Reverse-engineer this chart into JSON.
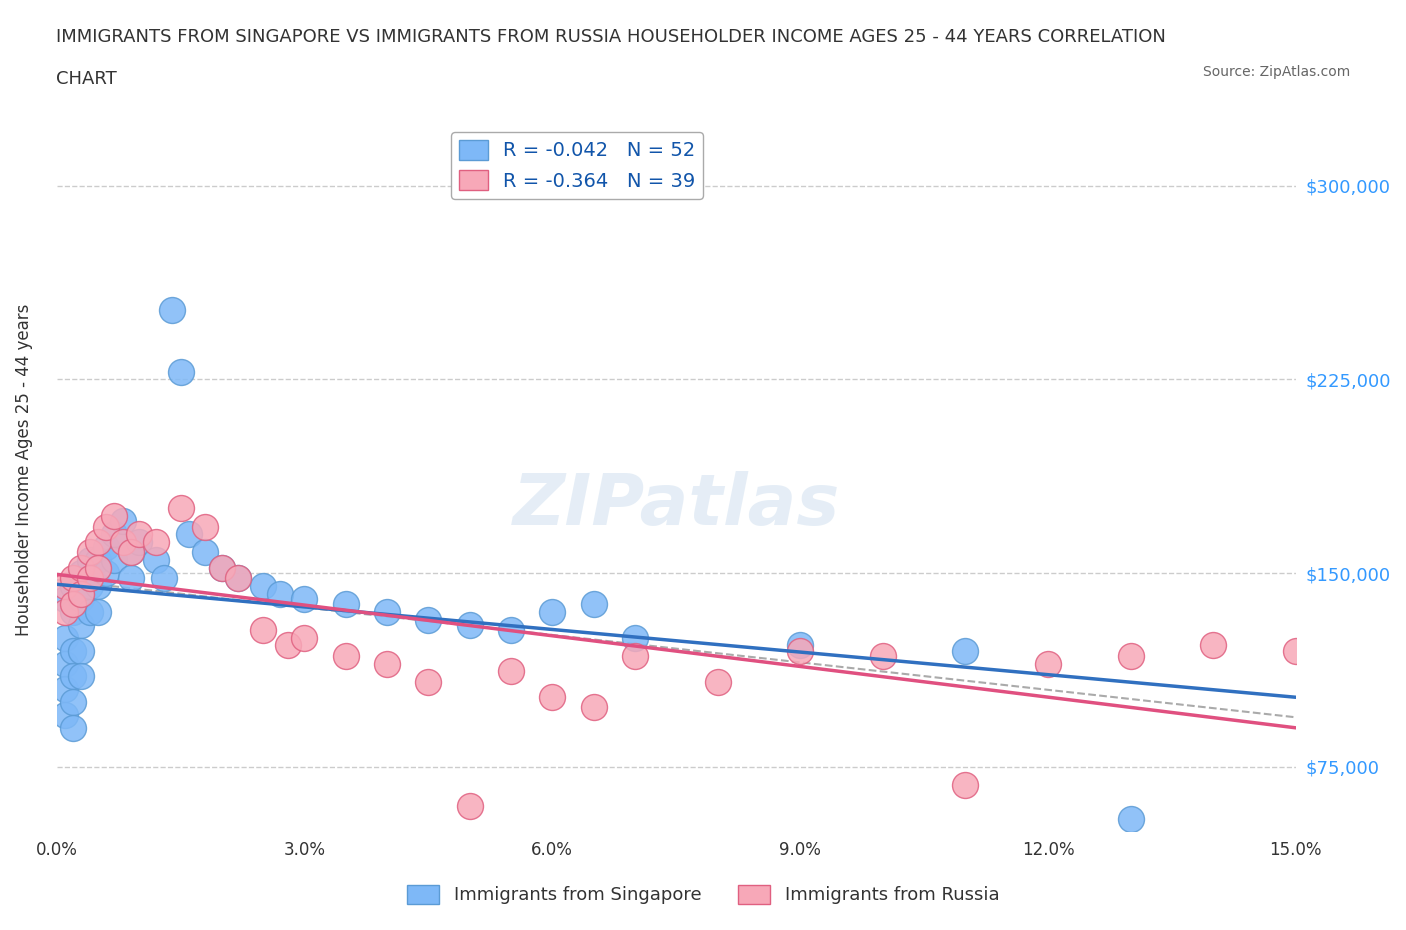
{
  "title_line1": "IMMIGRANTS FROM SINGAPORE VS IMMIGRANTS FROM RUSSIA HOUSEHOLDER INCOME AGES 25 - 44 YEARS CORRELATION",
  "title_line2": "CHART",
  "source": "Source: ZipAtlas.com",
  "xlabel": "",
  "ylabel": "Householder Income Ages 25 - 44 years",
  "xlim": [
    0.0,
    0.15
  ],
  "ylim": [
    50000,
    325000
  ],
  "yticks": [
    75000,
    150000,
    225000,
    300000
  ],
  "ytick_labels": [
    "$75,000",
    "$150,000",
    "$225,000",
    "$300,000"
  ],
  "xticks": [
    0.0,
    0.03,
    0.06,
    0.09,
    0.12,
    0.15
  ],
  "xtick_labels": [
    "0.0%",
    "3.0%",
    "6.0%",
    "9.0%",
    "12.0%",
    "15.0%"
  ],
  "singapore_color": "#7EB8F7",
  "russia_color": "#F7A8B8",
  "singapore_edge": "#5B9BD5",
  "russia_edge": "#E06080",
  "singapore_line_color": "#3070C0",
  "russia_line_color": "#E05080",
  "dashed_line_color": "#AAAAAA",
  "R_singapore": -0.042,
  "N_singapore": 52,
  "R_russia": -0.364,
  "N_russia": 39,
  "singapore_x": [
    0.001,
    0.001,
    0.001,
    0.001,
    0.001,
    0.002,
    0.002,
    0.002,
    0.002,
    0.002,
    0.002,
    0.003,
    0.003,
    0.003,
    0.003,
    0.003,
    0.004,
    0.004,
    0.004,
    0.005,
    0.005,
    0.005,
    0.006,
    0.006,
    0.007,
    0.007,
    0.008,
    0.009,
    0.009,
    0.01,
    0.012,
    0.013,
    0.014,
    0.015,
    0.016,
    0.018,
    0.02,
    0.022,
    0.025,
    0.027,
    0.03,
    0.035,
    0.04,
    0.045,
    0.05,
    0.055,
    0.06,
    0.065,
    0.07,
    0.09,
    0.11,
    0.13
  ],
  "singapore_y": [
    140000,
    125000,
    115000,
    105000,
    95000,
    145000,
    135000,
    120000,
    110000,
    100000,
    90000,
    150000,
    140000,
    130000,
    120000,
    110000,
    155000,
    145000,
    135000,
    155000,
    145000,
    135000,
    160000,
    150000,
    165000,
    155000,
    170000,
    158000,
    148000,
    162000,
    155000,
    148000,
    252000,
    228000,
    165000,
    158000,
    152000,
    148000,
    145000,
    142000,
    140000,
    138000,
    135000,
    132000,
    130000,
    128000,
    135000,
    138000,
    125000,
    122000,
    120000,
    55000
  ],
  "russia_x": [
    0.001,
    0.001,
    0.002,
    0.002,
    0.003,
    0.003,
    0.004,
    0.004,
    0.005,
    0.005,
    0.006,
    0.007,
    0.008,
    0.009,
    0.01,
    0.012,
    0.015,
    0.018,
    0.02,
    0.022,
    0.025,
    0.028,
    0.03,
    0.035,
    0.04,
    0.045,
    0.05,
    0.055,
    0.06,
    0.065,
    0.07,
    0.08,
    0.09,
    0.1,
    0.11,
    0.12,
    0.13,
    0.14,
    0.15
  ],
  "russia_y": [
    145000,
    135000,
    148000,
    138000,
    152000,
    142000,
    158000,
    148000,
    162000,
    152000,
    168000,
    172000,
    162000,
    158000,
    165000,
    162000,
    175000,
    168000,
    152000,
    148000,
    128000,
    122000,
    125000,
    118000,
    115000,
    108000,
    60000,
    112000,
    102000,
    98000,
    118000,
    108000,
    120000,
    118000,
    68000,
    115000,
    118000,
    122000,
    120000
  ],
  "watermark": "ZIPatlas",
  "background_color": "#FFFFFF",
  "grid_color": "#CCCCCC"
}
